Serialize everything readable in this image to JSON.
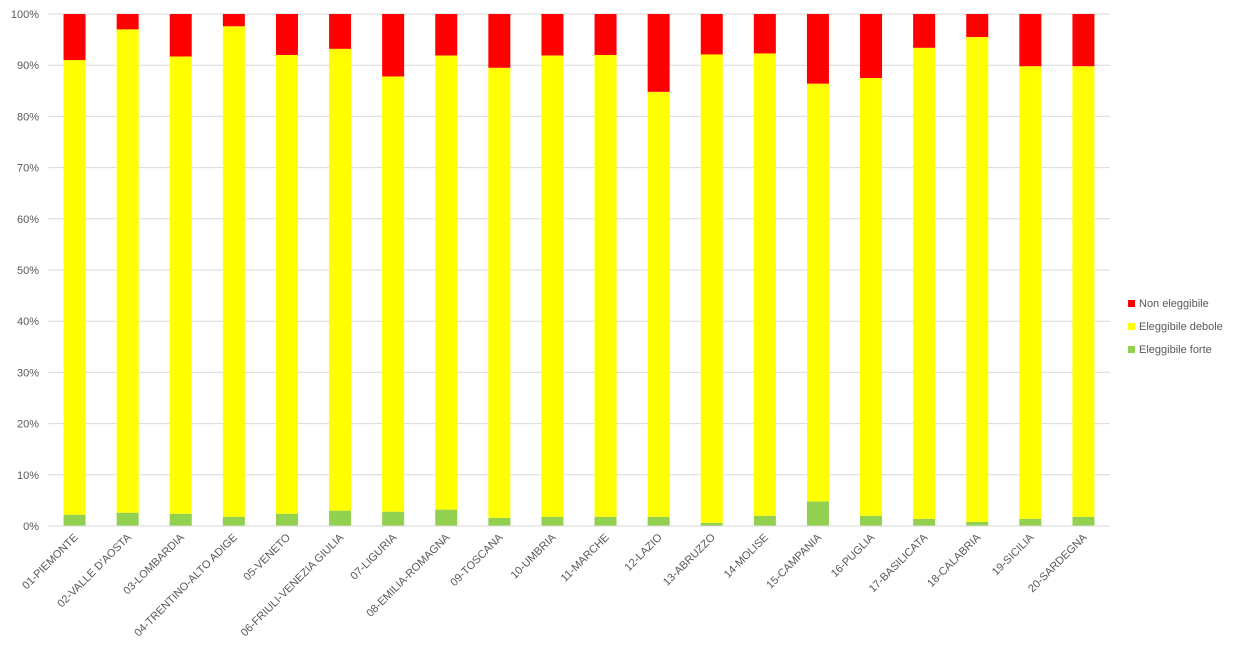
{
  "chart_data": {
    "type": "bar",
    "stacked": true,
    "percent_stacked": true,
    "title": "",
    "xlabel": "",
    "ylabel": "",
    "ylim": [
      0,
      100
    ],
    "y_ticks": [
      "0%",
      "10%",
      "20%",
      "30%",
      "40%",
      "50%",
      "60%",
      "70%",
      "80%",
      "90%",
      "100%"
    ],
    "grid": true,
    "legend_position": "right",
    "categories": [
      "01-PIEMONTE",
      "02-VALLE D'AOSTA",
      "03-LOMBARDIA",
      "04-TRENTINO-ALTO ADIGE",
      "05-VENETO",
      "06-FRIULI-VENEZIA GIULIA",
      "07-LIGURIA",
      "08-EMILIA-ROMAGNA",
      "09-TOSCANA",
      "10-UMBRIA",
      "11-MARCHE",
      "12-LAZIO",
      "13-ABRUZZO",
      "14-MOLISE",
      "15-CAMPANIA",
      "16-PUGLIA",
      "17-BASILICATA",
      "18-CALABRIA",
      "19-SICILIA",
      "20-SARDEGNA"
    ],
    "series": [
      {
        "name": "Eleggibile forte",
        "color": "#92D050",
        "values": [
          2.2,
          2.6,
          2.4,
          1.8,
          2.4,
          3.0,
          2.8,
          3.2,
          1.6,
          1.8,
          1.8,
          1.8,
          0.6,
          2.0,
          4.8,
          2.0,
          1.4,
          0.8,
          1.4,
          1.8
        ]
      },
      {
        "name": "Eleggibile debole",
        "color": "#FFFF00",
        "values": [
          88.8,
          94.4,
          89.3,
          95.8,
          89.6,
          90.2,
          85.0,
          88.7,
          87.9,
          90.1,
          90.2,
          83.0,
          91.5,
          90.3,
          81.6,
          85.5,
          92.0,
          94.7,
          88.4,
          88.0
        ]
      },
      {
        "name": "Non eleggibile",
        "color": "#FF0000",
        "values": [
          9.0,
          3.0,
          8.3,
          2.4,
          8.0,
          6.8,
          12.2,
          8.1,
          10.5,
          8.1,
          8.0,
          15.2,
          7.9,
          7.7,
          13.6,
          12.5,
          6.6,
          4.5,
          10.2,
          10.2
        ]
      }
    ]
  }
}
